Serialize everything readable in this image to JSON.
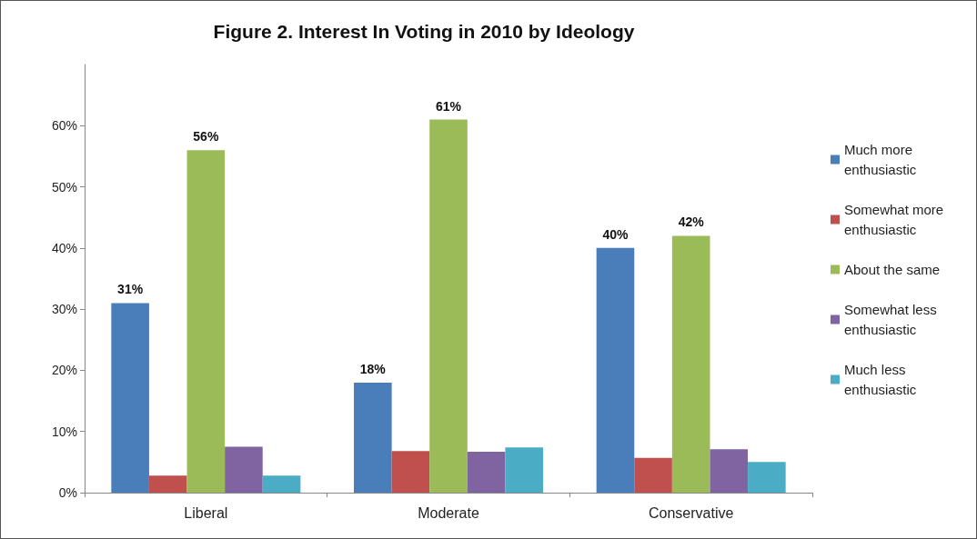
{
  "chart_data": {
    "type": "bar",
    "title": "Figure 2. Interest In Voting in 2010 by Ideology",
    "categories": [
      "Liberal",
      "Moderate",
      "Conservative"
    ],
    "series": [
      {
        "name": "Much more enthusiastic",
        "color": "#4a7ebb",
        "values": [
          31,
          18,
          40
        ],
        "value_labels": [
          "31%",
          "18%",
          "40%"
        ]
      },
      {
        "name": "Somewhat more enthusiastic",
        "color": "#c0504d",
        "values": [
          2.8,
          6.8,
          5.7
        ]
      },
      {
        "name": "About the same",
        "color": "#9bbb59",
        "values": [
          56,
          61,
          42
        ],
        "value_labels": [
          "56%",
          "61%",
          "42%"
        ]
      },
      {
        "name": "Somewhat less enthusiastic",
        "color": "#8064a2",
        "values": [
          7.5,
          6.7,
          7.1
        ]
      },
      {
        "name": "Much less enthusiastic",
        "color": "#4bacc6",
        "values": [
          2.8,
          7.4,
          5.0
        ]
      }
    ],
    "ylim": [
      0,
      70
    ],
    "yticks": [
      {
        "value": 0,
        "label": "0%"
      },
      {
        "value": 10,
        "label": "10%"
      },
      {
        "value": 20,
        "label": "20%"
      },
      {
        "value": 30,
        "label": "30%"
      },
      {
        "value": 40,
        "label": "40%"
      },
      {
        "value": 50,
        "label": "50%"
      },
      {
        "value": 60,
        "label": "60%"
      }
    ],
    "grid": false,
    "legend": "right"
  }
}
